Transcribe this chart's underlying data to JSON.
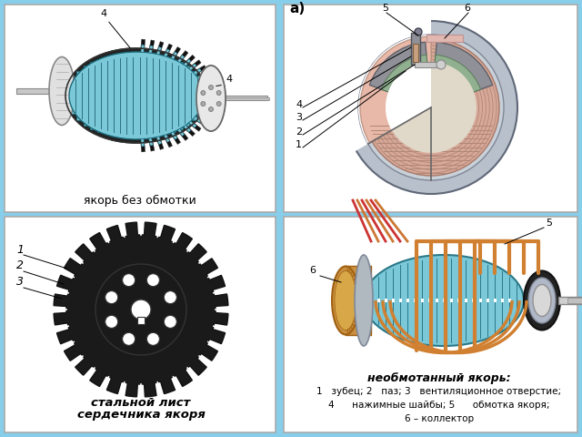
{
  "bg_color": "#87CEEB",
  "fig_width": 6.4,
  "fig_height": 4.8,
  "dpi": 100,
  "panel_tl": [
    5,
    245,
    298,
    228
  ],
  "panel_tr": [
    308,
    245,
    325,
    228
  ],
  "panel_bl": [
    5,
    8,
    298,
    232
  ],
  "panel_br": [
    308,
    8,
    325,
    232
  ],
  "panel_color": "#f5f5f5",
  "caption_tl": "якорь без обмотки",
  "caption_bl1": "стальной лист",
  "caption_bl2": "сердечника якоря",
  "caption_br_title": "необмотанный якорь:",
  "caption_br_1": "1   зубец; 2   паз; 3   вентиляционное отверстие;",
  "caption_br_2": "4      нажимные шайбы; 5      обмотка якоря;",
  "caption_br_3": "6 – коллектор",
  "teal": "#7ac8d8",
  "teal_dark": "#2a7888",
  "orange": "#d08030",
  "orange_dark": "#a06010",
  "gold": "#c89040",
  "gray_light": "#d8d8d8",
  "gray_mid": "#b0b0b0",
  "gray_dark": "#808080",
  "pink": "#e8b0a0",
  "pink_dark": "#c89080",
  "black": "#1a1a1a"
}
